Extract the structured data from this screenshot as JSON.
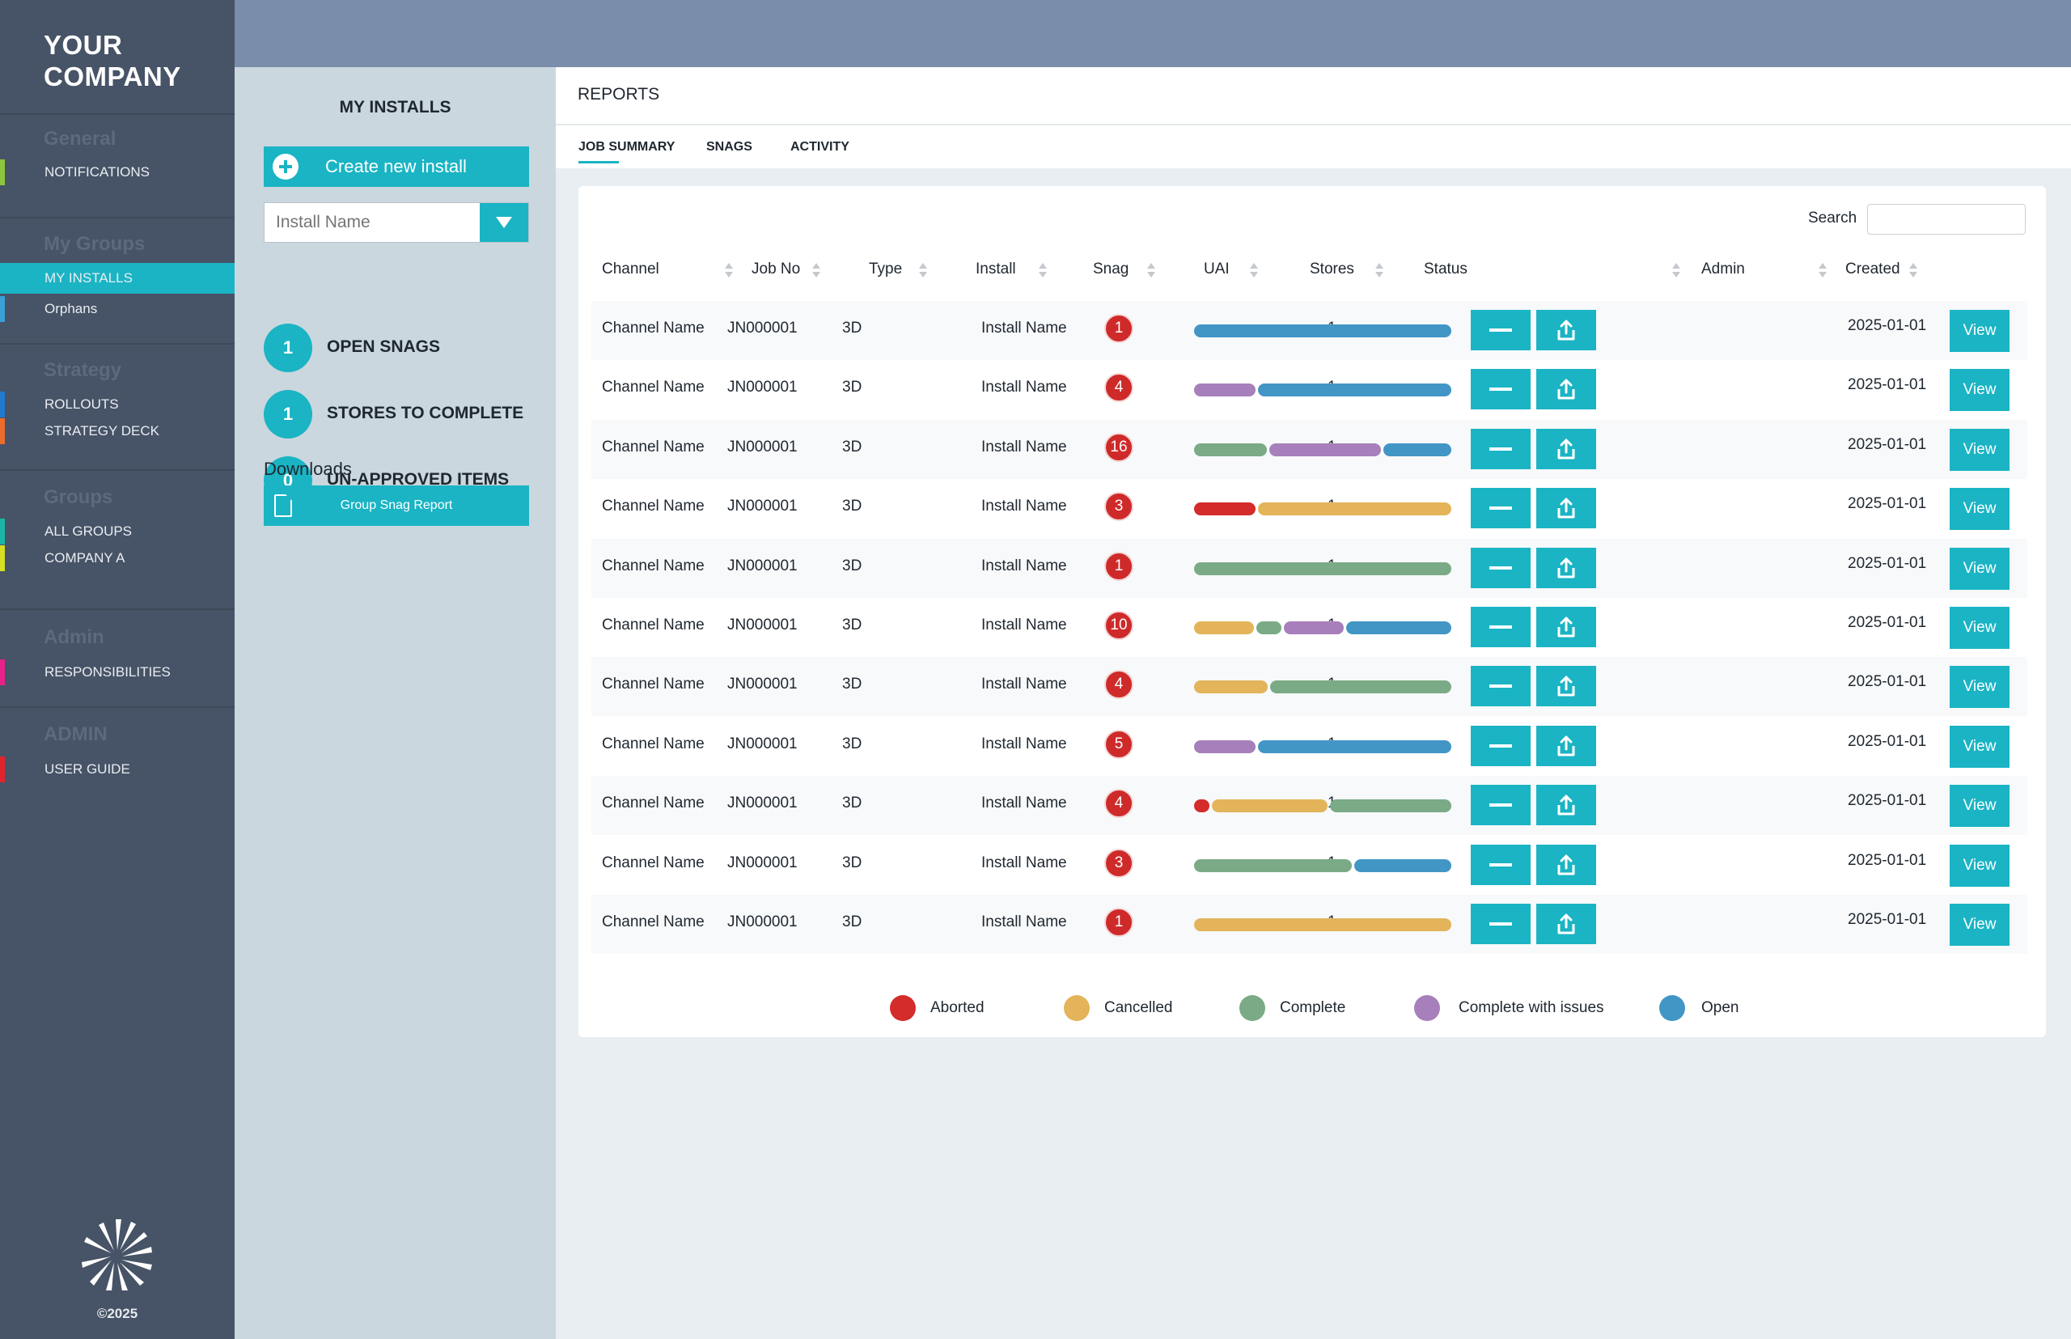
{
  "nav": {
    "brand_line1": "YOUR",
    "brand_line2": "COMPANY",
    "sections": [
      {
        "heading": "General",
        "items": [
          {
            "label": "NOTIFICATIONS",
            "color": "#8cc63f"
          }
        ]
      },
      {
        "heading": "My Groups",
        "items": [
          {
            "label": "MY INSTALLS",
            "color": "#1ab4c4"
          },
          {
            "label": "Orphans",
            "color": "#3aa0d8"
          }
        ]
      },
      {
        "heading": "Strategy",
        "items": [
          {
            "label": "ROLLOUTS",
            "color": "#1f7ad0"
          },
          {
            "label": "STRATEGY DECK",
            "color": "#ee6c2b"
          }
        ]
      },
      {
        "heading": "Groups",
        "items": [
          {
            "label": "ALL GROUPS",
            "color": "#19b6a7"
          },
          {
            "label": "COMPANY A",
            "color": "#d7df23"
          }
        ]
      },
      {
        "heading": "Admin",
        "items": [
          {
            "label": "RESPONSIBILITIES",
            "color": "#e8208a"
          }
        ]
      },
      {
        "heading": "ADMIN",
        "items": [
          {
            "label": "USER GUIDE",
            "color": "#e0242c"
          }
        ]
      }
    ],
    "copyright": "©2025"
  },
  "installs": {
    "title": "MY INSTALLS",
    "create_label": "Create new install",
    "install_placeholder": "Install Name",
    "summary": [
      {
        "count": "1",
        "label": "OPEN SNAGS"
      },
      {
        "count": "1",
        "label": "STORES TO COMPLETE"
      },
      {
        "count": "0",
        "label": "UN-APPROVED ITEMS"
      }
    ],
    "downloads_label": "Downloads",
    "report_label": "Group Snag Report"
  },
  "reports": {
    "title": "REPORTS",
    "tabs": [
      "JOB SUMMARY",
      "SNAGS",
      "ACTIVITY"
    ],
    "search_label": "Search",
    "columns": [
      "Channel",
      "Job No",
      "Type",
      "Install",
      "Snag",
      "UAI",
      "Stores",
      "Status",
      "Admin",
      "Created"
    ],
    "view_label": "View",
    "rows": [
      {
        "channel": "Channel Name",
        "job_no": "JN000001",
        "type": "3D",
        "install": "Install Name",
        "snag": "1",
        "uai": "",
        "stores": "1",
        "created": "2025-01-01",
        "status": [
          {
            "s": "open",
            "f": 1.0
          }
        ]
      },
      {
        "channel": "Channel Name",
        "job_no": "JN000001",
        "type": "3D",
        "install": "Install Name",
        "snag": "4",
        "uai": "",
        "stores": "1",
        "created": "2025-01-01",
        "status": [
          {
            "s": "issues",
            "f": 0.24
          },
          {
            "s": "open",
            "f": 0.76
          }
        ]
      },
      {
        "channel": "Channel Name",
        "job_no": "JN000001",
        "type": "3D",
        "install": "Install Name",
        "snag": "16",
        "uai": "",
        "stores": "1",
        "created": "2025-01-01",
        "status": [
          {
            "s": "complete",
            "f": 0.29
          },
          {
            "s": "issues",
            "f": 0.44
          },
          {
            "s": "open",
            "f": 0.27
          }
        ]
      },
      {
        "channel": "Channel Name",
        "job_no": "JN000001",
        "type": "3D",
        "install": "Install Name",
        "snag": "3",
        "uai": "",
        "stores": "1",
        "created": "2025-01-01",
        "status": [
          {
            "s": "aborted",
            "f": 0.24
          },
          {
            "s": "cancelled",
            "f": 0.76
          }
        ]
      },
      {
        "channel": "Channel Name",
        "job_no": "JN000001",
        "type": "3D",
        "install": "Install Name",
        "snag": "1",
        "uai": "",
        "stores": "1",
        "created": "2025-01-01",
        "status": [
          {
            "s": "complete",
            "f": 1.0
          }
        ]
      },
      {
        "channel": "Channel Name",
        "job_no": "JN000001",
        "type": "3D",
        "install": "Install Name",
        "snag": "10",
        "uai": "",
        "stores": "1",
        "created": "2025-01-01",
        "status": [
          {
            "s": "cancelled",
            "f": 0.24
          },
          {
            "s": "complete",
            "f": 0.1
          },
          {
            "s": "issues",
            "f": 0.24
          },
          {
            "s": "open",
            "f": 0.42
          }
        ]
      },
      {
        "channel": "Channel Name",
        "job_no": "JN000001",
        "type": "3D",
        "install": "Install Name",
        "snag": "4",
        "uai": "",
        "stores": "1",
        "created": "2025-01-01",
        "status": [
          {
            "s": "cancelled",
            "f": 0.29
          },
          {
            "s": "complete",
            "f": 0.71
          }
        ]
      },
      {
        "channel": "Channel Name",
        "job_no": "JN000001",
        "type": "3D",
        "install": "Install Name",
        "snag": "5",
        "uai": "",
        "stores": "1",
        "created": "2025-01-01",
        "status": [
          {
            "s": "issues",
            "f": 0.24
          },
          {
            "s": "open",
            "f": 0.76
          }
        ]
      },
      {
        "channel": "Channel Name",
        "job_no": "JN000001",
        "type": "3D",
        "install": "Install Name",
        "snag": "4",
        "uai": "",
        "stores": "1",
        "created": "2025-01-01",
        "status": [
          {
            "s": "aborted",
            "f": 0.06
          },
          {
            "s": "cancelled",
            "f": 0.46
          },
          {
            "s": "complete",
            "f": 0.48
          }
        ]
      },
      {
        "channel": "Channel Name",
        "job_no": "JN000001",
        "type": "3D",
        "install": "Install Name",
        "snag": "3",
        "uai": "",
        "stores": "1",
        "created": "2025-01-01",
        "status": [
          {
            "s": "complete",
            "f": 0.62
          },
          {
            "s": "open",
            "f": 0.38
          }
        ]
      },
      {
        "channel": "Channel Name",
        "job_no": "JN000001",
        "type": "3D",
        "install": "Install Name",
        "snag": "1",
        "uai": "",
        "stores": "1",
        "created": "2025-01-01",
        "status": [
          {
            "s": "cancelled",
            "f": 1.0
          }
        ]
      }
    ],
    "legend": [
      {
        "key": "aborted",
        "label": "Aborted",
        "color": "#d42b2b"
      },
      {
        "key": "cancelled",
        "label": "Cancelled",
        "color": "#e3b45a"
      },
      {
        "key": "complete",
        "label": "Complete",
        "color": "#7aab86"
      },
      {
        "key": "issues",
        "label": "Complete with issues",
        "color": "#a77fbb"
      },
      {
        "key": "open",
        "label": "Open",
        "color": "#4296c6"
      }
    ]
  }
}
